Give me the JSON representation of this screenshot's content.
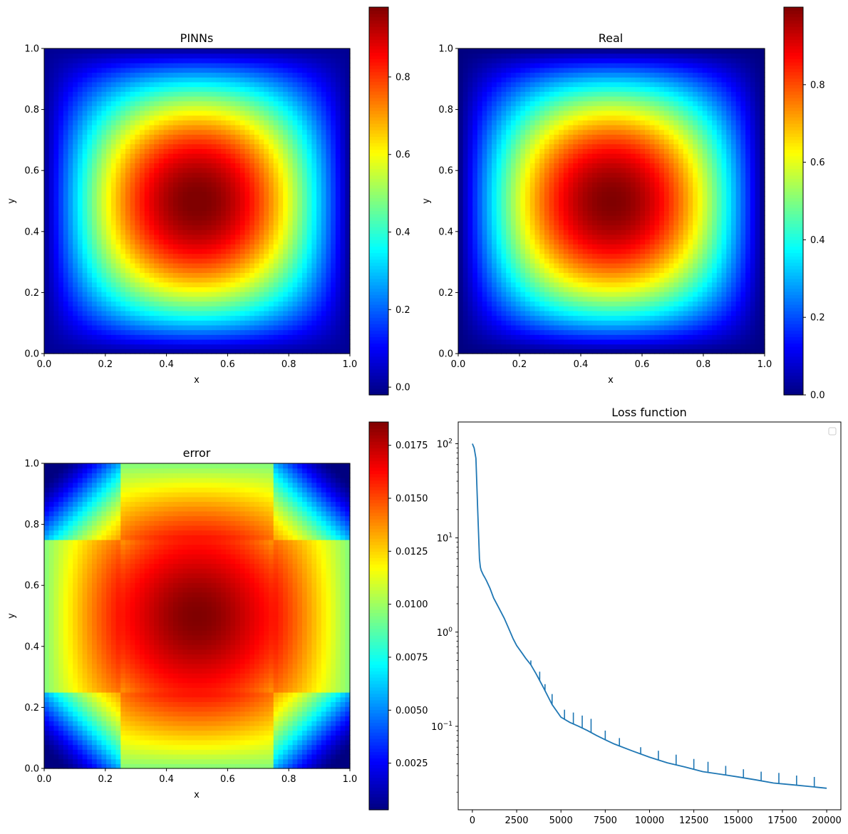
{
  "chart_data": [
    {
      "type": "heatmap",
      "title": "PINNs",
      "xlabel": "x",
      "ylabel": "y",
      "xlim": [
        0.0,
        1.0
      ],
      "ylim": [
        0.0,
        1.0
      ],
      "x_ticks": [
        "0.0",
        "0.2",
        "0.4",
        "0.6",
        "0.8",
        "1.0"
      ],
      "y_ticks": [
        "0.0",
        "0.2",
        "0.4",
        "0.6",
        "0.8",
        "1.0"
      ],
      "colormap": "jet",
      "field": "sin(pi x) * sin(pi y)",
      "peak": [
        0.5,
        0.5
      ],
      "clim": [
        -0.02,
        0.98
      ],
      "colorbar_ticks": [
        "0.0",
        "0.2",
        "0.4",
        "0.6",
        "0.8"
      ]
    },
    {
      "type": "heatmap",
      "title": "Real",
      "xlabel": "x",
      "ylabel": "y",
      "xlim": [
        0.0,
        1.0
      ],
      "ylim": [
        0.0,
        1.0
      ],
      "x_ticks": [
        "0.0",
        "0.2",
        "0.4",
        "0.6",
        "0.8",
        "1.0"
      ],
      "y_ticks": [
        "0.0",
        "0.2",
        "0.4",
        "0.6",
        "0.8",
        "1.0"
      ],
      "colormap": "jet",
      "field": "sin(pi x) * sin(pi y)",
      "peak": [
        0.5,
        0.5
      ],
      "clim": [
        0.0,
        1.0
      ],
      "colorbar_ticks": [
        "0.0",
        "0.2",
        "0.4",
        "0.6",
        "0.8"
      ]
    },
    {
      "type": "heatmap",
      "title": "error",
      "xlabel": "x",
      "ylabel": "y",
      "xlim": [
        0.0,
        1.0
      ],
      "ylim": [
        0.0,
        1.0
      ],
      "x_ticks": [
        "0.0",
        "0.2",
        "0.4",
        "0.6",
        "0.8",
        "1.0"
      ],
      "y_ticks": [
        "0.0",
        "0.2",
        "0.4",
        "0.6",
        "0.8",
        "1.0"
      ],
      "colormap": "jet",
      "peak": [
        0.5,
        0.5
      ],
      "clim": [
        0.0003,
        0.0186
      ],
      "colorbar_ticks": [
        "0.0025",
        "0.0050",
        "0.0075",
        "0.0100",
        "0.0125",
        "0.0150",
        "0.0175"
      ]
    },
    {
      "type": "line",
      "title": "Loss function",
      "xlabel": "",
      "ylabel": "",
      "yscale": "log",
      "xlim": [
        -800,
        20800
      ],
      "ylim": [
        0.013,
        170
      ],
      "x_ticks": [
        "0",
        "2500",
        "5000",
        "7500",
        "10000",
        "12500",
        "15000",
        "17500",
        "20000"
      ],
      "y_ticks": [
        "10^2",
        "10^1",
        "10^0",
        "10^-1"
      ],
      "legend": "top-right (empty)",
      "color": "#1f77b4",
      "series": [
        {
          "x": [
            0,
            100,
            200,
            300,
            400,
            450,
            500,
            550,
            600,
            700,
            800,
            1000,
            1200,
            1500,
            1800,
            2000,
            2300,
            2500,
            2800,
            3000,
            3300,
            3600,
            4000,
            4500,
            5000,
            5500,
            6000,
            6500,
            7000,
            7500,
            8000,
            9000,
            10000,
            11000,
            12000,
            13000,
            14000,
            15000,
            16000,
            17000,
            18000,
            19000,
            20000
          ],
          "y": [
            100,
            90,
            70,
            20,
            6,
            4.9,
            4.5,
            4.3,
            4.1,
            3.8,
            3.5,
            2.9,
            2.3,
            1.8,
            1.4,
            1.15,
            0.85,
            0.72,
            0.6,
            0.53,
            0.45,
            0.36,
            0.26,
            0.17,
            0.125,
            0.11,
            0.1,
            0.09,
            0.08,
            0.072,
            0.065,
            0.055,
            0.047,
            0.041,
            0.037,
            0.033,
            0.031,
            0.029,
            0.027,
            0.025,
            0.024,
            0.023,
            0.022
          ]
        }
      ],
      "spikes": [
        {
          "x": 3300,
          "y": 0.5
        },
        {
          "x": 3800,
          "y": 0.38
        },
        {
          "x": 4100,
          "y": 0.28
        },
        {
          "x": 4500,
          "y": 0.22
        },
        {
          "x": 5200,
          "y": 0.15
        },
        {
          "x": 5700,
          "y": 0.14
        },
        {
          "x": 6200,
          "y": 0.13
        },
        {
          "x": 6700,
          "y": 0.12
        },
        {
          "x": 7500,
          "y": 0.09
        },
        {
          "x": 8300,
          "y": 0.075
        },
        {
          "x": 9500,
          "y": 0.06
        },
        {
          "x": 10500,
          "y": 0.055
        },
        {
          "x": 11500,
          "y": 0.05
        },
        {
          "x": 12500,
          "y": 0.045
        },
        {
          "x": 13300,
          "y": 0.042
        },
        {
          "x": 14300,
          "y": 0.038
        },
        {
          "x": 15300,
          "y": 0.035
        },
        {
          "x": 16300,
          "y": 0.033
        },
        {
          "x": 17300,
          "y": 0.032
        },
        {
          "x": 18300,
          "y": 0.03
        },
        {
          "x": 19300,
          "y": 0.029
        }
      ]
    }
  ]
}
